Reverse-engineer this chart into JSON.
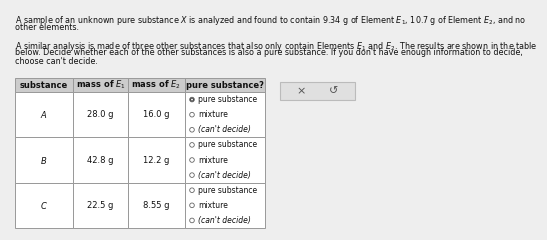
{
  "header_lines": [
    "A sample of an unknown pure substance $X$ is analyzed and found to contain 9.34 g of Element $E_1$, 10.7 g of Element $E_2$, and no",
    "other elements.",
    "",
    "A similar analysis is made of three other substances that also only contain Elements $E_1$ and $E_2$. The results are shown in the table",
    "below. Decide whether each of the other substances is also a pure substance. If you don't have enough information to decide,",
    "choose can't decide."
  ],
  "col_headers": [
    "substance",
    "mass of $E_1$",
    "mass of $E_2$",
    "pure substance?"
  ],
  "rows": [
    {
      "substance": "$A$",
      "e1": "28.0 g",
      "e2": "16.0 g"
    },
    {
      "substance": "$B$",
      "e1": "42.8 g",
      "e2": "12.2 g"
    },
    {
      "substance": "$C$",
      "e1": "22.5 g",
      "e2": "8.55 g"
    }
  ],
  "options": [
    "pure substance",
    "mixture",
    "(can't decide)"
  ],
  "selected": [
    0,
    -1,
    -1
  ],
  "bg_color": "#eeeeee",
  "table_bg": "#ffffff",
  "header_bg": "#cccccc",
  "border_color": "#999999",
  "text_color": "#111111",
  "font_size_text": 5.8,
  "font_size_header": 6.0,
  "font_size_body": 6.0,
  "font_size_option": 5.5,
  "button_x": "×",
  "button_r": "↺",
  "btn_color": "#e0e0e0",
  "btn_border": "#bbbbbb"
}
